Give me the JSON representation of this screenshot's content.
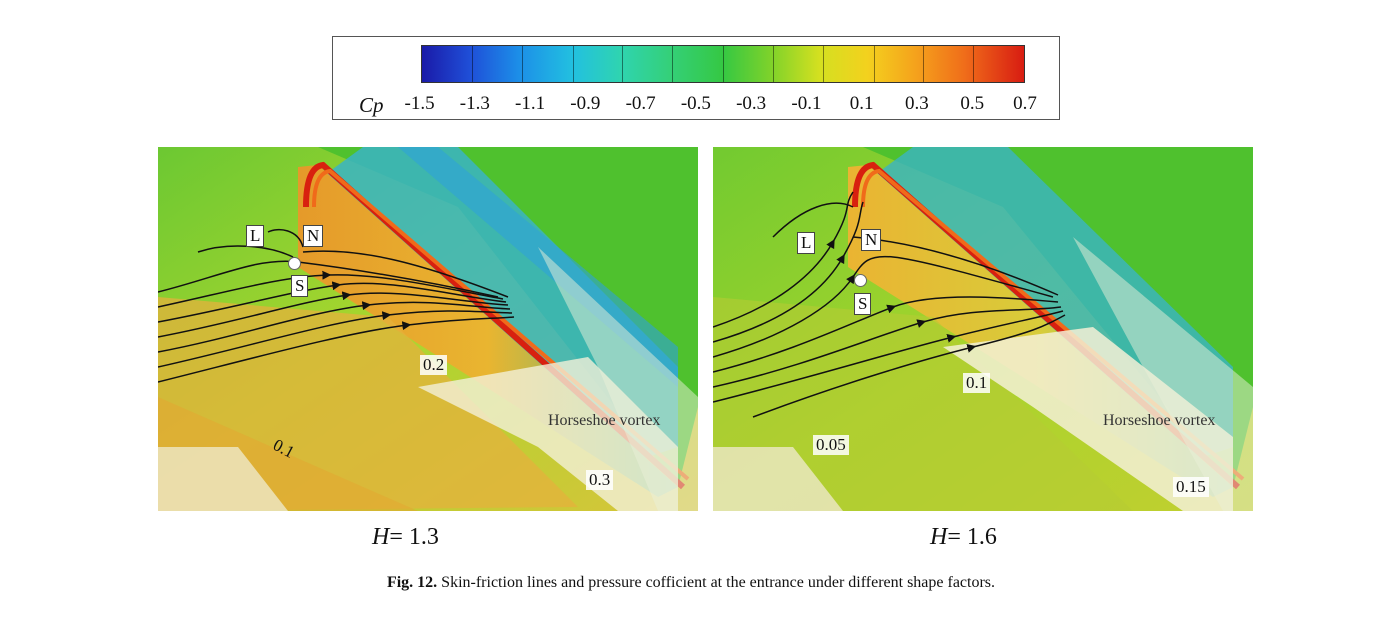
{
  "colorbar": {
    "label": "Cp",
    "ticks": [
      "-1.5",
      "-1.3",
      "-1.1",
      "-0.9",
      "-0.7",
      "-0.5",
      "-0.3",
      "-0.1",
      "0.1",
      "0.3",
      "0.5",
      "0.7"
    ]
  },
  "panels": [
    {
      "point_L": "L",
      "point_N": "N",
      "point_S": "S",
      "annotation": "Horseshoe vortex",
      "values": [
        "0.2",
        "0.1",
        "0.3"
      ],
      "h_symbol": "H",
      "h_value": "= 1.3"
    },
    {
      "point_L": "L",
      "point_N": "N",
      "point_S": "S",
      "annotation": "Horseshoe vortex",
      "values": [
        "0.1",
        "0.05",
        "0.15"
      ],
      "h_symbol": "H",
      "h_value": "= 1.6"
    }
  ],
  "caption": {
    "label": "Fig. 12.",
    "text": "Skin-friction lines and pressure cofficient at the entrance under different shape factors."
  },
  "colors": {
    "base_green": "#4cbf2c",
    "yellow_green": "#b8d830",
    "orange": "#f0a020",
    "red_edge": "#d82010",
    "cyan": "#37b8c8"
  }
}
